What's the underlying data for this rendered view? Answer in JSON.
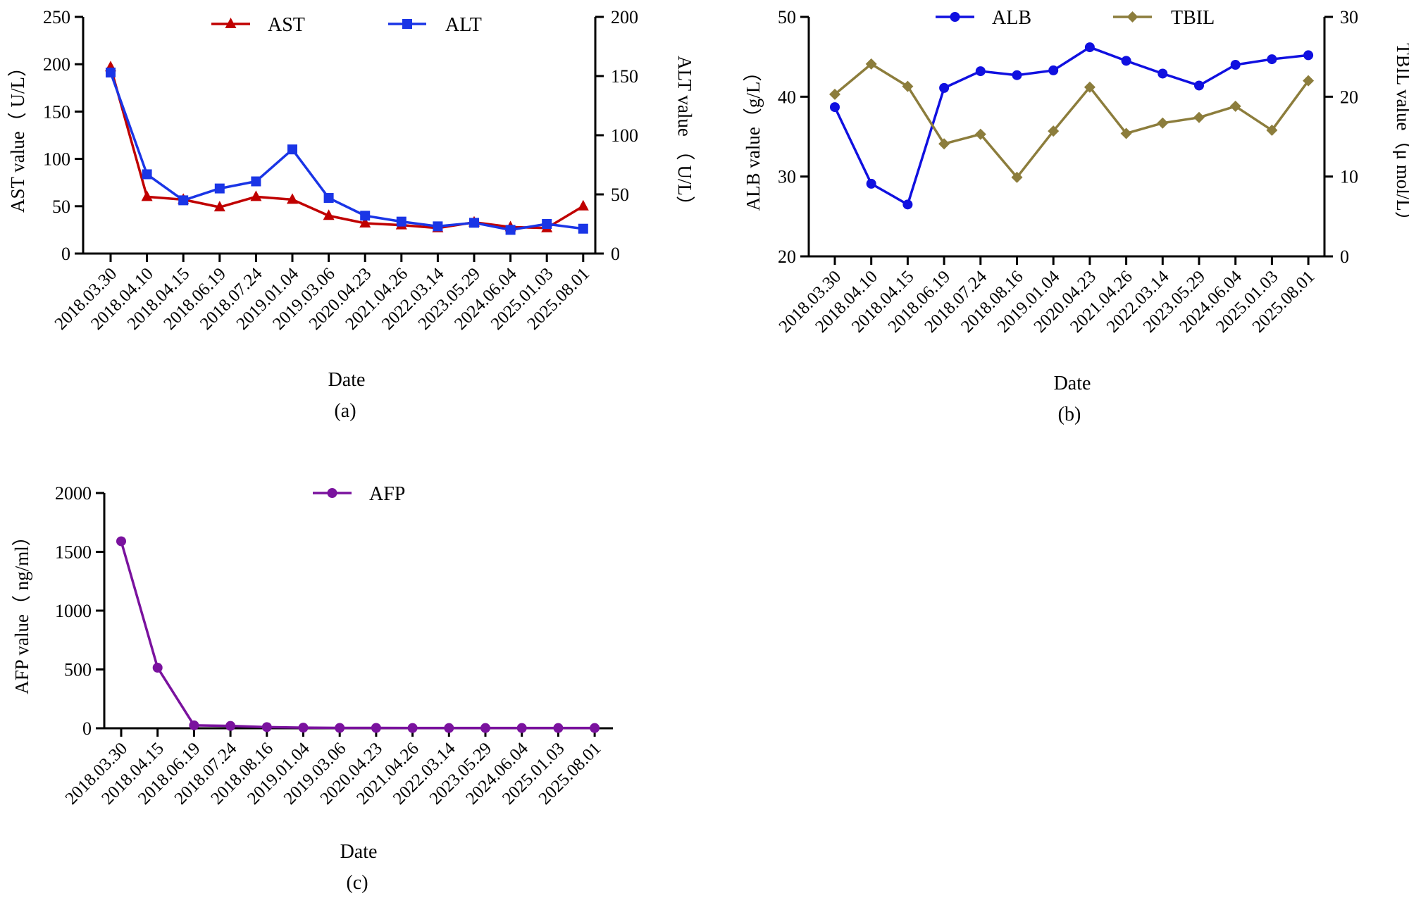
{
  "colors": {
    "ast": "#c00000",
    "alt": "#1a35e6",
    "alb": "#1010e0",
    "tbil": "#8c7d3c",
    "afp": "#7a129e",
    "axis": "#000000"
  },
  "chart_data": [
    {
      "id": "a",
      "type": "line",
      "caption": "(a)",
      "xlabel": "Date",
      "ylabel": "AST value（ U/L）",
      "y2label": "ALT value （ U/L）",
      "ylim": [
        0,
        250
      ],
      "yticks": [
        0,
        50,
        100,
        150,
        200,
        250
      ],
      "y2lim": [
        0,
        200
      ],
      "y2ticks": [
        0,
        50,
        100,
        150,
        200
      ],
      "categories": [
        "2018.03.30",
        "2018.04.10",
        "2018.04.15",
        "2018.06.19",
        "2018.07.24",
        "2019.01.04",
        "2019.03.06",
        "2020.04.23",
        "2021.04.26",
        "2022.03.14",
        "2023.05.29",
        "2024.06.04",
        "2025.01.03",
        "2025.08.01"
      ],
      "series": [
        {
          "name": "AST",
          "axis": "left",
          "marker": "triangle",
          "color": "ast",
          "values": [
            197,
            60,
            57,
            49,
            60,
            57,
            40,
            32,
            30,
            27,
            33,
            28,
            27,
            50
          ]
        },
        {
          "name": "ALT",
          "axis": "right",
          "marker": "square",
          "color": "alt",
          "values": [
            153,
            67,
            45,
            55,
            61,
            88,
            47,
            32,
            27,
            23,
            26,
            20,
            25,
            21
          ]
        }
      ]
    },
    {
      "id": "b",
      "type": "line",
      "caption": "(b)",
      "xlabel": "Date",
      "ylabel": "ALB value（g/L）",
      "y2label": "TBIL value（μ mol/L）",
      "ylim": [
        20,
        50
      ],
      "yticks": [
        20,
        30,
        40,
        50
      ],
      "y2lim": [
        0,
        30
      ],
      "y2ticks": [
        0,
        10,
        20,
        30
      ],
      "categories": [
        "2018.03.30",
        "2018.04.10",
        "2018.04.15",
        "2018.06.19",
        "2018.07.24",
        "2018.08.16",
        "2019.01.04",
        "2020.04.23",
        "2021.04.26",
        "2022.03.14",
        "2023.05.29",
        "2024.06.04",
        "2025.01.03",
        "2025.08.01"
      ],
      "series": [
        {
          "name": "ALB",
          "axis": "left",
          "marker": "circle",
          "color": "alb",
          "values": [
            38.7,
            29.1,
            26.5,
            41.1,
            43.2,
            42.7,
            43.3,
            46.2,
            44.5,
            42.9,
            41.4,
            44.0,
            44.7,
            45.2
          ]
        },
        {
          "name": "TBIL",
          "axis": "right",
          "marker": "diamond",
          "color": "tbil",
          "values": [
            20.3,
            24.1,
            21.3,
            14.1,
            15.3,
            9.9,
            15.7,
            21.2,
            15.4,
            16.7,
            17.4,
            18.8,
            15.8,
            22.0
          ]
        }
      ]
    },
    {
      "id": "c",
      "type": "line",
      "caption": "(c)",
      "xlabel": "Date",
      "ylabel": "AFP value（ ng/ml）",
      "ylim": [
        0,
        2000
      ],
      "yticks": [
        0,
        500,
        1000,
        1500,
        2000
      ],
      "categories": [
        "2018.03.30",
        "2018.04.15",
        "2018.06.19",
        "2018.07.24",
        "2018.08.16",
        "2019.01.04",
        "2019.03.06",
        "2020.04.23",
        "2021.04.26",
        "2022.03.14",
        "2023.05.29",
        "2024.06.04",
        "2025.01.03",
        "2025.08.01"
      ],
      "series": [
        {
          "name": "AFP",
          "axis": "left",
          "marker": "circle",
          "color": "afp",
          "values": [
            1590,
            515,
            25,
            20,
            10,
            5,
            3,
            3,
            2,
            2,
            2,
            2,
            2,
            2
          ]
        }
      ]
    }
  ]
}
